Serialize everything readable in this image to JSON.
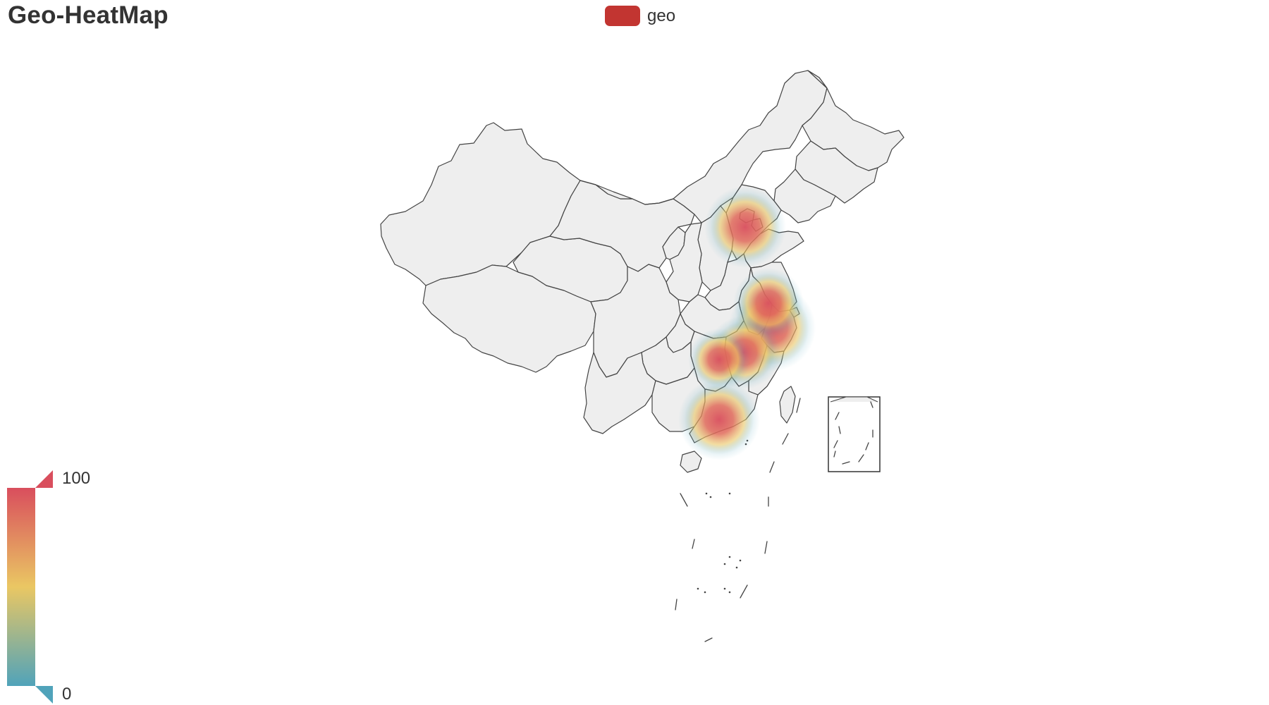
{
  "title": "Geo-HeatMap",
  "legend": {
    "items": [
      {
        "name": "geo",
        "color": "#c23531"
      }
    ]
  },
  "visual_map": {
    "max": "100",
    "min": "0",
    "colors": [
      "#d94e5d",
      "#eac763",
      "#50a3ba"
    ]
  },
  "map": {
    "base_fill": "#eeeeee",
    "border_color": "#444444"
  },
  "chart_data": {
    "type": "heatmap",
    "title": "Geo-HeatMap",
    "series": [
      {
        "name": "geo"
      }
    ],
    "value_range": [
      0,
      100
    ]
  }
}
